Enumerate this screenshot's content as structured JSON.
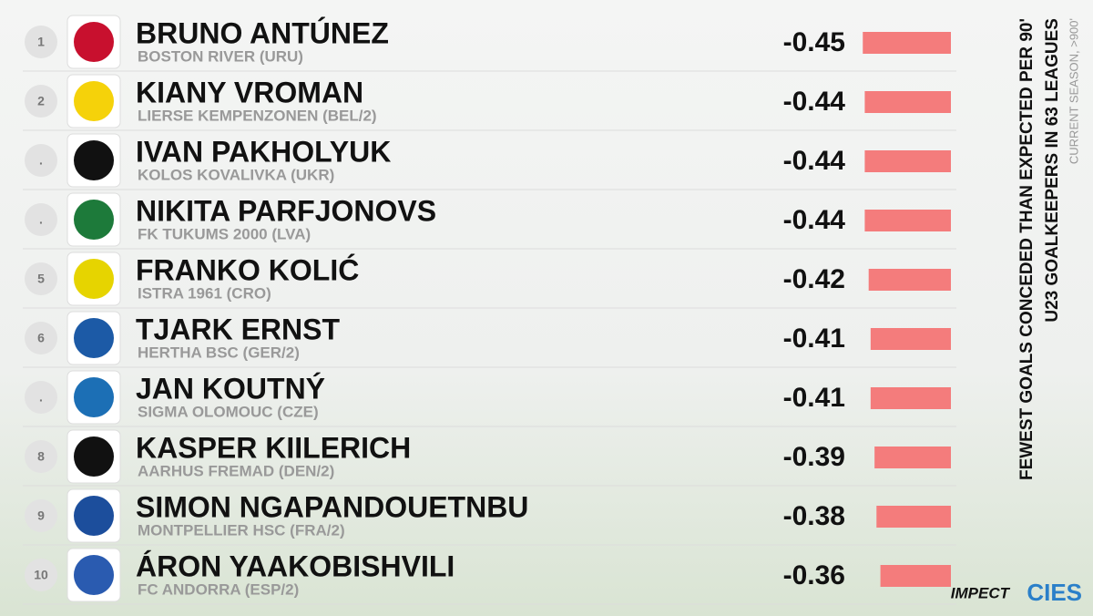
{
  "chart_data": {
    "type": "bar",
    "title": "FEWEST GOALS CONCEDED THAN EXPECTED PER 90'",
    "subtitle": "U23 GOALKEEPERS IN 63 LEAGUES",
    "note": "CURRENT SEASON, >900'",
    "ranks": [
      "1",
      "2",
      ".",
      ".",
      "5",
      "6",
      ".",
      "8",
      "9",
      "10"
    ],
    "categories": [
      "BRUNO ANTÚNEZ",
      "KIANY VROMAN",
      "IVAN PAKHOLYUK",
      "NIKITA PARFJONOVS",
      "FRANKO KOLIĆ",
      "TJARK ERNST",
      "JAN KOUTNÝ",
      "KASPER KIILERICH",
      "SIMON NGAPANDOUETNBU",
      "ÁRON YAAKOBISHVILI"
    ],
    "clubs": [
      "BOSTON RIVER (URU)",
      "LIERSE KEMPENZONEN (BEL/2)",
      "KOLOS KOVALIVKA (UKR)",
      "FK TUKUMS 2000 (LVA)",
      "ISTRA 1961 (CRO)",
      "HERTHA BSC (GER/2)",
      "SIGMA OLOMOUC (CZE)",
      "AARHUS FREMAD (DEN/2)",
      "MONTPELLIER HSC (FRA/2)",
      "FC ANDORRA (ESP/2)"
    ],
    "values": [
      -0.45,
      -0.44,
      -0.44,
      -0.44,
      -0.42,
      -0.41,
      -0.41,
      -0.39,
      -0.38,
      -0.36
    ],
    "color": "#f47c7c",
    "logos": [
      "IMPECT",
      "CIES"
    ]
  }
}
